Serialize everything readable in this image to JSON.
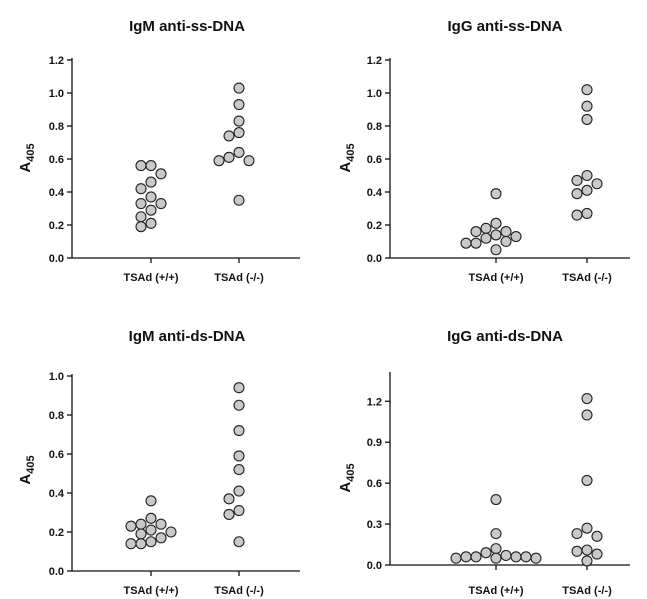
{
  "chart_data": [
    {
      "type": "scatter",
      "title": "IgM anti-ss-DNA",
      "ylabel_main": "A",
      "ylabel_sub": "405",
      "ylim": [
        0,
        1.2
      ],
      "yticks": [
        "0.0",
        "0.2",
        "0.4",
        "0.6",
        "0.8",
        "1.0",
        "1.2"
      ],
      "categories": [
        "TSAd (+/+)",
        "TSAd (-/-)"
      ],
      "series": [
        {
          "category": "TSAd (+/+)",
          "values": [
            0.56,
            0.56,
            0.51,
            0.46,
            0.42,
            0.37,
            0.33,
            0.33,
            0.29,
            0.25,
            0.21,
            0.19
          ]
        },
        {
          "category": "TSAd (-/-)",
          "values": [
            1.03,
            0.93,
            0.83,
            0.76,
            0.74,
            0.64,
            0.61,
            0.59,
            0.59,
            0.35
          ]
        }
      ]
    },
    {
      "type": "scatter",
      "title": "IgG anti-ss-DNA",
      "ylabel_main": "A",
      "ylabel_sub": "405",
      "ylim": [
        0,
        1.2
      ],
      "yticks": [
        "0.0",
        "0.2",
        "0.4",
        "0.6",
        "0.8",
        "1.0",
        "1.2"
      ],
      "categories": [
        "TSAd (+/+)",
        "TSAd (-/-)"
      ],
      "series": [
        {
          "category": "TSAd (+/+)",
          "values": [
            0.39,
            0.21,
            0.18,
            0.16,
            0.16,
            0.14,
            0.13,
            0.12,
            0.1,
            0.09,
            0.09,
            0.05
          ]
        },
        {
          "category": "TSAd (-/-)",
          "values": [
            1.02,
            0.92,
            0.84,
            0.5,
            0.47,
            0.45,
            0.41,
            0.39,
            0.27,
            0.26
          ]
        }
      ]
    },
    {
      "type": "scatter",
      "title": "IgM anti-ds-DNA",
      "ylabel_main": "A",
      "ylabel_sub": "405",
      "ylim": [
        0,
        1.0
      ],
      "yticks": [
        "0.0",
        "0.2",
        "0.4",
        "0.6",
        "0.8",
        "1.0"
      ],
      "categories": [
        "TSAd (+/+)",
        "TSAd (-/-)"
      ],
      "series": [
        {
          "category": "TSAd (+/+)",
          "values": [
            0.36,
            0.27,
            0.24,
            0.24,
            0.23,
            0.21,
            0.2,
            0.19,
            0.17,
            0.15,
            0.14,
            0.14
          ]
        },
        {
          "category": "TSAd (-/-)",
          "values": [
            0.94,
            0.85,
            0.72,
            0.59,
            0.52,
            0.41,
            0.37,
            0.31,
            0.29,
            0.15
          ]
        }
      ]
    },
    {
      "type": "scatter",
      "title": "IgG anti-ds-DNA",
      "ylabel_main": "A",
      "ylabel_sub": "405",
      "ylim": [
        0,
        1.4
      ],
      "yticks": [
        "0.0",
        "0.3",
        "0.6",
        "0.9",
        "1.2"
      ],
      "categories": [
        "TSAd (+/+)",
        "TSAd (-/-)"
      ],
      "series": [
        {
          "category": "TSAd (+/+)",
          "values": [
            0.48,
            0.23,
            0.12,
            0.09,
            0.07,
            0.06,
            0.06,
            0.06,
            0.06,
            0.05,
            0.05,
            0.05
          ]
        },
        {
          "category": "TSAd (-/-)",
          "values": [
            1.22,
            1.1,
            0.62,
            0.27,
            0.23,
            0.21,
            0.11,
            0.1,
            0.08,
            0.03
          ]
        }
      ]
    }
  ]
}
